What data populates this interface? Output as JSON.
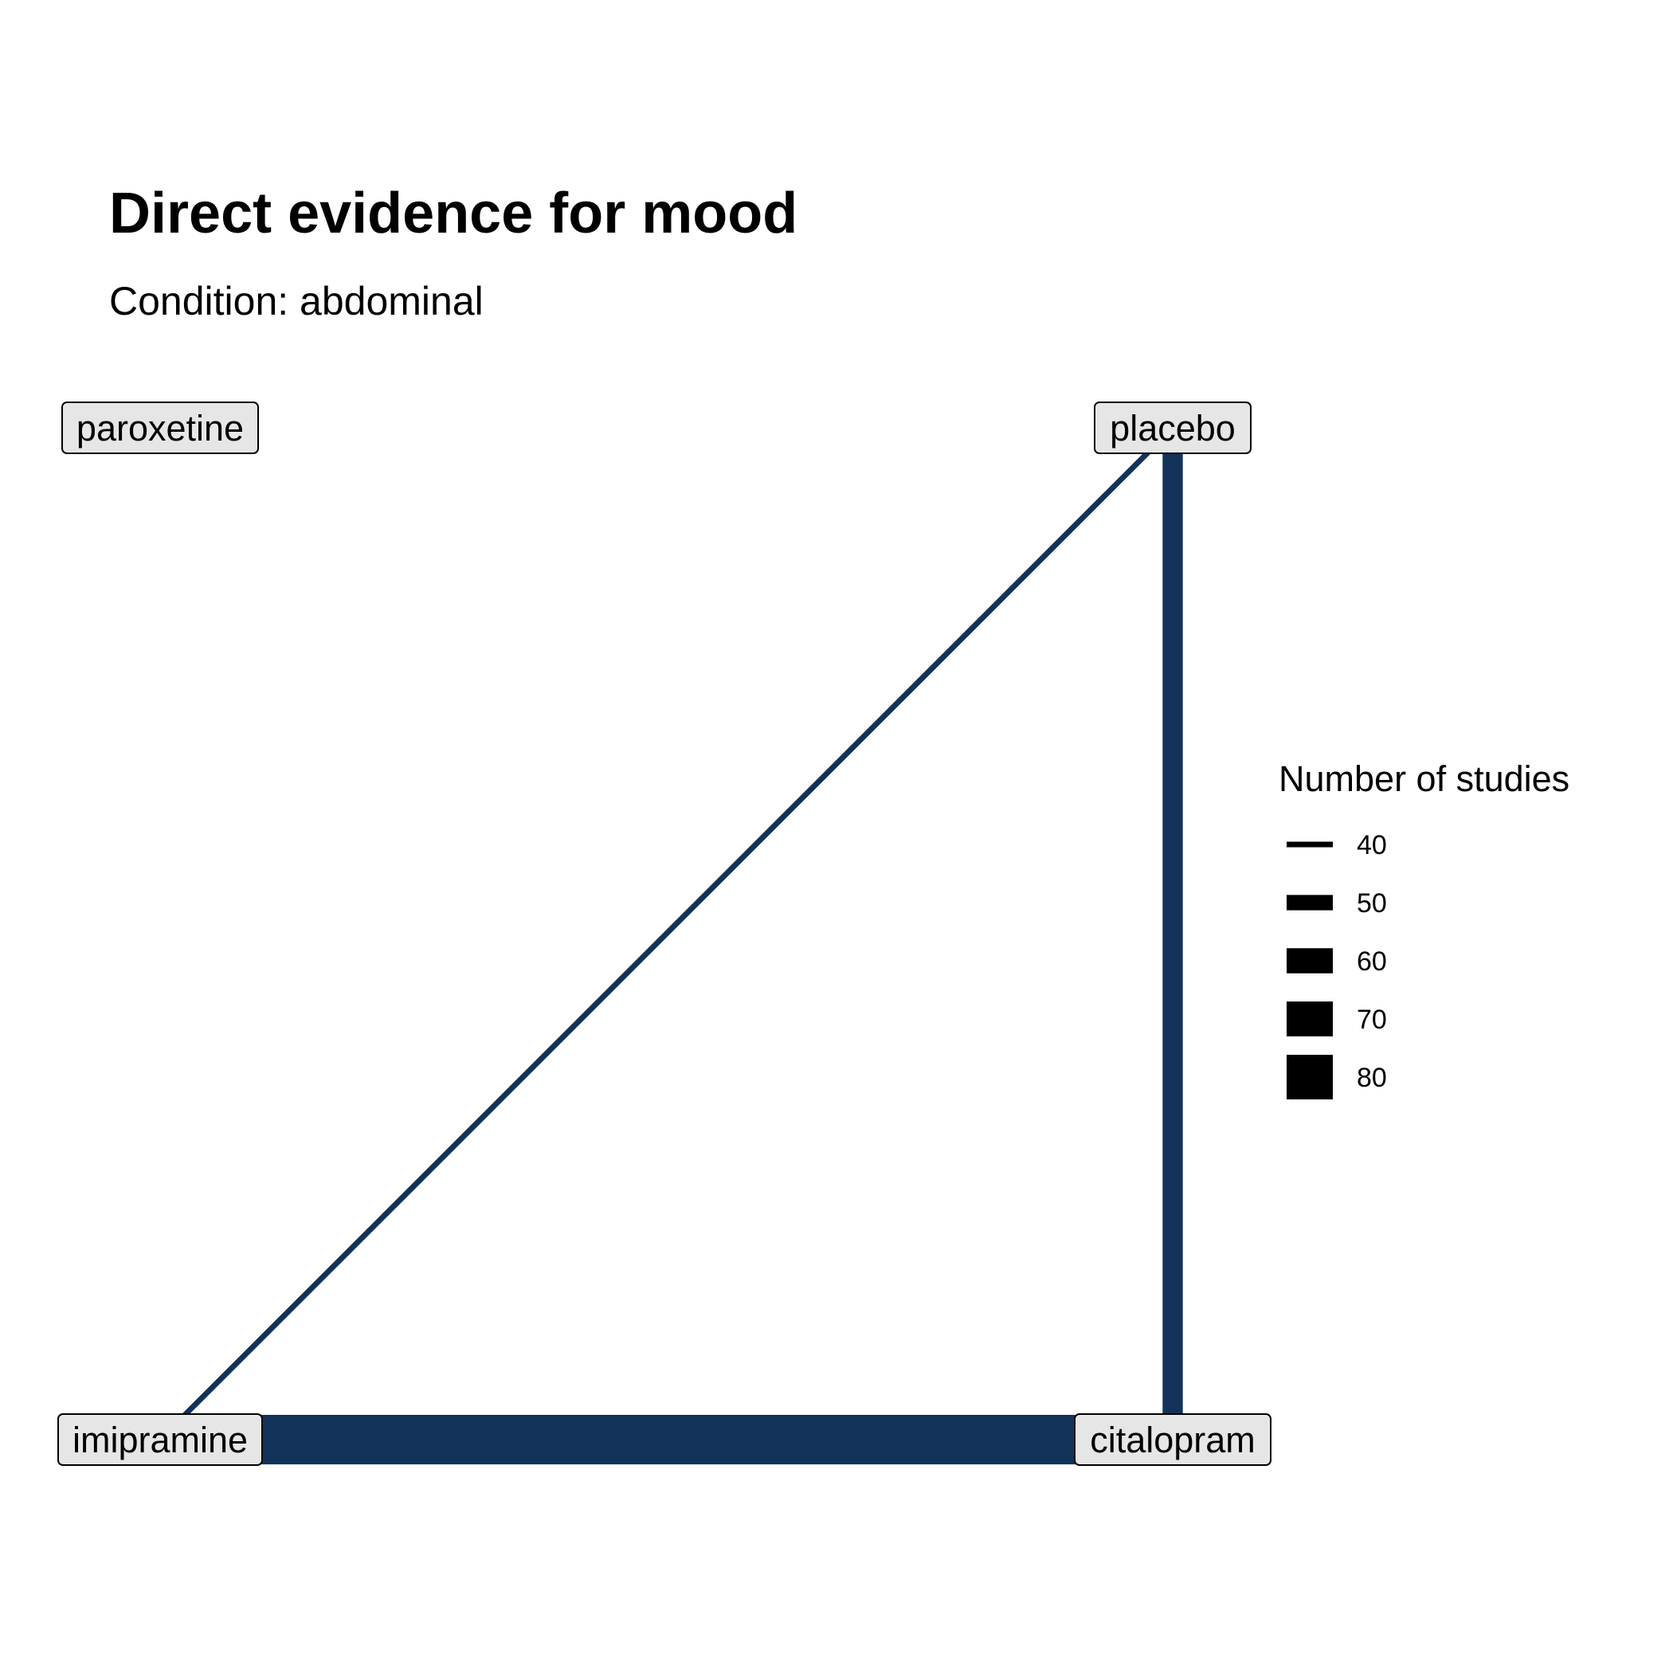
{
  "title": "Direct evidence for mood",
  "subtitle": "Condition: abdominal",
  "colors": {
    "edge": "#12325A",
    "node_fill": "#E6E6E6",
    "node_border": "#000000",
    "legend_key": "#000000"
  },
  "network": {
    "nodes": [
      {
        "id": "paroxetine",
        "label": "paroxetine"
      },
      {
        "id": "placebo",
        "label": "placebo"
      },
      {
        "id": "imipramine",
        "label": "imipramine"
      },
      {
        "id": "citalopram",
        "label": "citalopram"
      }
    ],
    "edges": [
      {
        "from": "imipramine",
        "to": "placebo",
        "studies": 40
      },
      {
        "from": "placebo",
        "to": "citalopram",
        "studies": 55
      },
      {
        "from": "imipramine",
        "to": "citalopram",
        "studies": 85
      }
    ]
  },
  "legend": {
    "title": "Number of studies",
    "items": [
      40,
      50,
      60,
      70,
      80
    ]
  }
}
